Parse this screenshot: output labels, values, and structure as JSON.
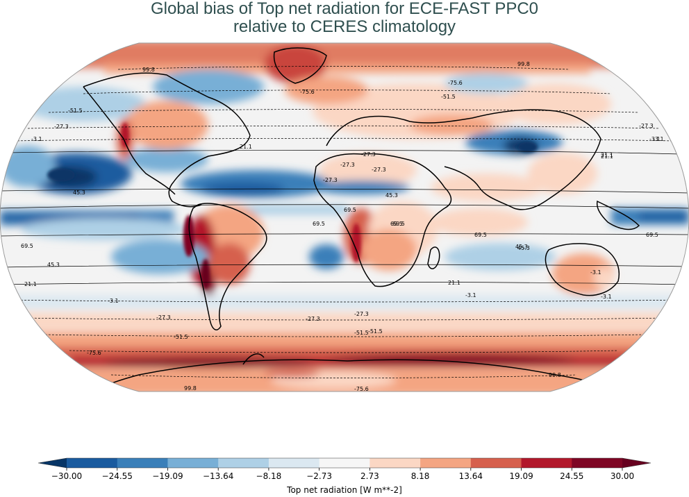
{
  "title_line1": "Global bias of Top net radiation for ECE-FAST PPC0",
  "title_line2": "relative to CERES climatology",
  "colorbar": {
    "label": "Top net radiation [W m**-2]",
    "ticks": [
      "−30.00",
      "−24.55",
      "−19.09",
      "−13.64",
      "−8.18",
      "−2.73",
      "2.73",
      "8.18",
      "13.64",
      "19.09",
      "24.55",
      "30.00"
    ],
    "colors": [
      "#073566",
      "#1a5b9f",
      "#3a7fb9",
      "#78afd6",
      "#aed0e6",
      "#dbe8f1",
      "#f6f6f6",
      "#fbd7c4",
      "#f4a582",
      "#d6604d",
      "#b2182b",
      "#7e0624",
      "#67001f"
    ]
  },
  "contours": {
    "north": [
      "99.8",
      "-75.6",
      "-51.5",
      "-27.3",
      "-3.1",
      "21.1",
      "45.3",
      "69.5"
    ],
    "south": [
      "69.5",
      "45.3",
      "21.1",
      "-3.1",
      "-27.3",
      "-51.5",
      "-75.6",
      "99.8"
    ],
    "west": [
      "-51.5",
      "-27.3",
      "-3.1",
      "45.3",
      "69.5",
      "45.3",
      "21.1"
    ],
    "east": [
      "99.8",
      "-27.3",
      "-3.1",
      "21.1",
      "69.5",
      "99.8"
    ],
    "africa": [
      "-27.3",
      "-27.3",
      "-27.3",
      "-27.3",
      "69.5",
      "69.5",
      "-3.1",
      "-3.1"
    ],
    "pacific": [
      "-75.6",
      "-51.5",
      "21.1",
      "45.3",
      "69.5",
      "-3.1",
      "-27.3",
      "-51.5",
      "-75.6"
    ]
  },
  "colors": {
    "title": "#2f4f4f",
    "coast": "#000000"
  }
}
